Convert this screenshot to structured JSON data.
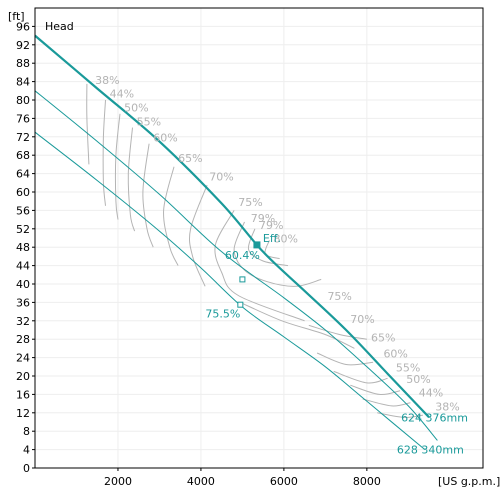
{
  "chart_data": {
    "type": "line",
    "title": "Head",
    "y_unit": "[ft]",
    "x_unit": "[US g.p.m.]",
    "xlim": [
      0,
      10800
    ],
    "ylim": [
      0,
      100
    ],
    "x_ticks": [
      2000,
      4000,
      6000,
      8000
    ],
    "y_ticks": [
      0,
      4,
      8,
      12,
      16,
      20,
      24,
      28,
      32,
      36,
      40,
      44,
      48,
      52,
      56,
      60,
      64,
      68,
      72,
      76,
      80,
      84,
      88,
      92,
      96
    ],
    "grid": true,
    "colors": {
      "curve": "#1a9a9a",
      "eff": "#b4b4b4",
      "frame": "#000000"
    },
    "series": [
      {
        "name": "624 376mm",
        "points": [
          [
            0,
            94
          ],
          [
            1500,
            82.5
          ],
          [
            3000,
            71
          ],
          [
            4500,
            57.5
          ],
          [
            5500,
            47
          ],
          [
            6500,
            38.5
          ],
          [
            7500,
            30
          ],
          [
            8500,
            20.5
          ],
          [
            9500,
            11
          ]
        ],
        "bold": true
      },
      {
        "name": "",
        "points": [
          [
            0,
            82
          ],
          [
            1500,
            71
          ],
          [
            3000,
            59.5
          ],
          [
            4500,
            47
          ],
          [
            6000,
            37
          ],
          [
            7000,
            30
          ],
          [
            8000,
            22
          ],
          [
            9000,
            13.5
          ],
          [
            9700,
            6
          ]
        ]
      },
      {
        "name": "628 340mm",
        "points": [
          [
            0,
            73
          ],
          [
            1500,
            62.5
          ],
          [
            3000,
            51.5
          ],
          [
            4000,
            43.5
          ],
          [
            5000,
            35
          ],
          [
            6000,
            28.5
          ],
          [
            7000,
            22
          ],
          [
            8000,
            14.5
          ],
          [
            9400,
            4
          ]
        ]
      }
    ],
    "efficiency_labels": {
      "left": [
        {
          "text": "38%",
          "x": 1450,
          "y": 83.5
        },
        {
          "text": "44%",
          "x": 1800,
          "y": 80.5
        },
        {
          "text": "50%",
          "x": 2150,
          "y": 77.5
        },
        {
          "text": "55%",
          "x": 2450,
          "y": 74.5
        },
        {
          "text": "60%",
          "x": 2850,
          "y": 71
        },
        {
          "text": "65%",
          "x": 3450,
          "y": 66.5
        },
        {
          "text": "70%",
          "x": 4200,
          "y": 62.5
        },
        {
          "text": "75%",
          "x": 4900,
          "y": 57
        },
        {
          "text": "79%",
          "x": 5200,
          "y": 53.5
        },
        {
          "text": "79%",
          "x": 5400,
          "y": 52
        },
        {
          "text": "80%",
          "x": 5750,
          "y": 49
        }
      ],
      "right": [
        {
          "text": "75%",
          "x": 7050,
          "y": 36.5
        },
        {
          "text": "70%",
          "x": 7600,
          "y": 31.5
        },
        {
          "text": "65%",
          "x": 8100,
          "y": 27.5
        },
        {
          "text": "60%",
          "x": 8400,
          "y": 24
        },
        {
          "text": "55%",
          "x": 8700,
          "y": 21
        },
        {
          "text": "50%",
          "x": 8950,
          "y": 18.5
        },
        {
          "text": "44%",
          "x": 9250,
          "y": 15.5
        },
        {
          "text": "38%",
          "x": 9650,
          "y": 12.5
        }
      ]
    },
    "efficiency_curves": [
      [
        [
          1250,
          83.5
        ],
        [
          1250,
          76
        ],
        [
          1300,
          66
        ]
      ],
      [
        [
          1700,
          80
        ],
        [
          1650,
          72
        ],
        [
          1650,
          62
        ],
        [
          1700,
          57
        ]
      ],
      [
        [
          2050,
          77
        ],
        [
          1950,
          68
        ],
        [
          1950,
          58
        ],
        [
          2000,
          54
        ]
      ],
      [
        [
          2350,
          74
        ],
        [
          2250,
          64
        ],
        [
          2300,
          55
        ],
        [
          2400,
          51.5
        ]
      ],
      [
        [
          2750,
          70.5
        ],
        [
          2600,
          60
        ],
        [
          2700,
          52
        ],
        [
          2850,
          48
        ]
      ],
      [
        [
          3350,
          65.5
        ],
        [
          3100,
          56
        ],
        [
          3250,
          48
        ],
        [
          3450,
          44
        ]
      ],
      [
        [
          4150,
          61.5
        ],
        [
          3750,
          52
        ],
        [
          3800,
          46
        ],
        [
          4100,
          39.5
        ]
      ],
      [
        [
          4800,
          56
        ],
        [
          4350,
          48.5
        ],
        [
          4500,
          42.5
        ],
        [
          4900,
          37.5
        ],
        [
          6500,
          32
        ]
      ],
      [
        [
          5050,
          53.5
        ],
        [
          4800,
          47.5
        ],
        [
          5050,
          43
        ],
        [
          5600,
          40.5
        ],
        [
          6300,
          39.5
        ],
        [
          6900,
          41
        ]
      ],
      [
        [
          5300,
          52
        ],
        [
          5150,
          47.5
        ],
        [
          5500,
          45
        ],
        [
          6100,
          44
        ]
      ],
      [
        [
          5650,
          49.5
        ],
        [
          5550,
          46.5
        ],
        [
          5900,
          45.5
        ]
      ],
      [
        [
          4950,
          36
        ],
        [
          5950,
          32
        ],
        [
          7000,
          29
        ],
        [
          7700,
          26
        ]
      ],
      [
        [
          6600,
          31
        ],
        [
          7350,
          29
        ],
        [
          8000,
          28
        ]
      ],
      [
        [
          6800,
          25
        ],
        [
          7500,
          22.5
        ],
        [
          8150,
          23
        ]
      ],
      [
        [
          7200,
          21
        ],
        [
          8000,
          18.5
        ],
        [
          8500,
          19.5
        ]
      ],
      [
        [
          7600,
          18
        ],
        [
          8300,
          16
        ],
        [
          8800,
          16.8
        ]
      ],
      [
        [
          7900,
          15
        ],
        [
          8600,
          13.5
        ],
        [
          9050,
          14.2
        ]
      ],
      [
        [
          8250,
          12
        ],
        [
          8900,
          11
        ],
        [
          9350,
          11.5
        ]
      ]
    ],
    "operating_points": [
      {
        "label": "Eff.",
        "x": 5350,
        "y": 48.5,
        "kind": "filled"
      },
      {
        "label": "60.4%",
        "x": 5350,
        "y": 48.5,
        "kind": "text"
      },
      {
        "label": "",
        "x": 5000,
        "y": 41,
        "kind": "hollow"
      },
      {
        "label": "75.5%",
        "x": 4950,
        "y": 35.5,
        "kind": "hollow"
      }
    ]
  }
}
